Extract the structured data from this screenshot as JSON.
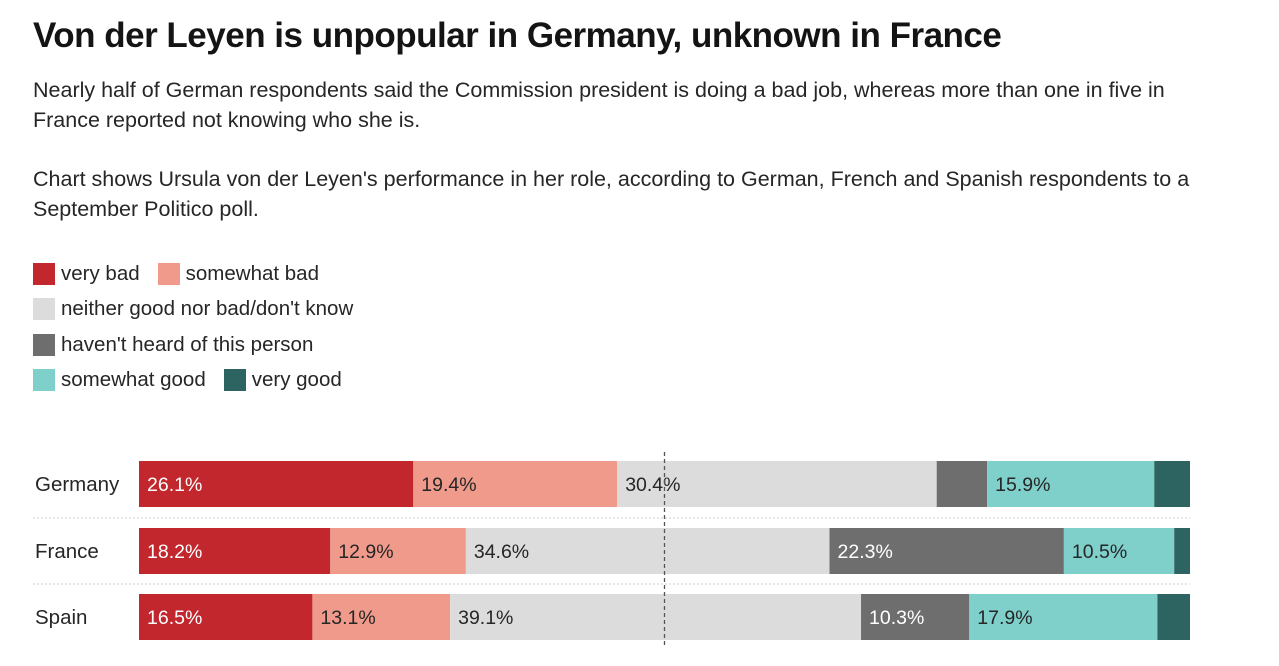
{
  "title": "Von der Leyen is unpopular in Germany, unknown in France",
  "subtitle": "Nearly half of German respondents said the Commission president is doing a bad job, whereas more than one in five in France reported not knowing who she is.",
  "description": "Chart shows Ursula von der Leyen's performance in her role, according to German, French and Spanish respondents to a September Politico poll.",
  "legend": [
    {
      "label": "very bad",
      "color": "#c1272d"
    },
    {
      "label": "somewhat bad",
      "color": "#ef9a8a"
    },
    {
      "label": "neither good nor bad/don't know",
      "color": "#dcdcdc"
    },
    {
      "label": "haven't heard of this person",
      "color": "#6e6e6e"
    },
    {
      "label": "somewhat good",
      "color": "#7fcfca"
    },
    {
      "label": "very good",
      "color": "#2d6461"
    }
  ],
  "chart_data": {
    "type": "bar",
    "orientation": "horizontal",
    "stacked": true,
    "categories": [
      "Germany",
      "France",
      "Spain"
    ],
    "series": [
      {
        "name": "very bad",
        "color": "#c1272d",
        "values": [
          26.1,
          18.2,
          16.5
        ],
        "labels": [
          "26.1%",
          "18.2%",
          "16.5%"
        ]
      },
      {
        "name": "somewhat bad",
        "color": "#ef9a8a",
        "values": [
          19.4,
          12.9,
          13.1
        ],
        "labels": [
          "19.4%",
          "12.9%",
          "13.1%"
        ]
      },
      {
        "name": "neither good nor bad/don't know",
        "color": "#dcdcdc",
        "values": [
          30.4,
          34.6,
          39.1
        ],
        "labels": [
          "30.4%",
          "34.6%",
          "39.1%"
        ]
      },
      {
        "name": "haven't heard of this person",
        "color": "#6e6e6e",
        "values": [
          4.8,
          22.3,
          10.3
        ],
        "labels": [
          "",
          "22.3%",
          "10.3%"
        ]
      },
      {
        "name": "somewhat good",
        "color": "#7fcfca",
        "values": [
          15.9,
          10.5,
          17.9
        ],
        "labels": [
          "15.9%",
          "10.5%",
          "17.9%"
        ]
      },
      {
        "name": "very good",
        "color": "#2d6461",
        "values": [
          3.4,
          1.5,
          3.1
        ],
        "labels": [
          "",
          "",
          ""
        ]
      }
    ],
    "xlim": [
      0,
      100
    ],
    "reference_line": 50
  }
}
